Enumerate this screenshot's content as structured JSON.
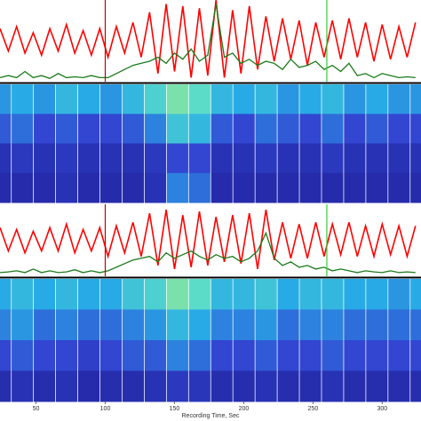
{
  "chart_data": [
    {
      "type": "line",
      "xlim": [
        24,
        328
      ],
      "ylim": [
        -1,
        1
      ],
      "x": [
        24,
        30,
        36,
        42,
        48,
        54,
        60,
        66,
        72,
        78,
        84,
        90,
        96,
        102,
        108,
        114,
        120,
        126,
        132,
        138,
        144,
        150,
        156,
        162,
        168,
        174,
        180,
        186,
        192,
        198,
        204,
        210,
        216,
        222,
        228,
        234,
        240,
        246,
        252,
        258,
        264,
        270,
        276,
        282,
        288,
        294,
        300,
        306,
        312,
        318,
        324
      ],
      "markers": [
        {
          "x": 100,
          "color": "#c00000"
        },
        {
          "x": 260,
          "color": "#33cc33"
        }
      ],
      "series": [
        {
          "color": "#ff0000",
          "values": [
            0.3,
            -0.25,
            0.35,
            -0.3,
            0.2,
            -0.35,
            0.3,
            -0.25,
            0.4,
            -0.3,
            0.25,
            -0.35,
            0.3,
            -0.4,
            0.35,
            -0.3,
            0.45,
            -0.4,
            0.7,
            -0.8,
            0.9,
            -0.75,
            0.85,
            -0.9,
            0.8,
            -0.85,
            1.0,
            -0.9,
            0.75,
            -0.8,
            0.85,
            -0.7,
            0.6,
            -0.5,
            0.55,
            -0.45,
            0.5,
            -0.6,
            0.45,
            -0.4,
            0.5,
            -0.45,
            0.55,
            -0.4,
            0.45,
            -0.5,
            0.4,
            -0.45,
            0.35,
            -0.4,
            0.45
          ]
        },
        {
          "color": "#1a7a1a",
          "values": [
            -0.9,
            -0.85,
            -0.9,
            -0.75,
            -0.9,
            -0.85,
            -0.92,
            -0.8,
            -0.9,
            -0.88,
            -0.9,
            -0.85,
            -0.9,
            -0.9,
            -0.8,
            -0.7,
            -0.6,
            -0.55,
            -0.5,
            -0.4,
            -0.55,
            -0.3,
            -0.45,
            -0.2,
            -0.5,
            -0.35,
            0.9,
            -0.4,
            -0.3,
            -0.55,
            -0.45,
            -0.6,
            -0.5,
            -0.55,
            -0.7,
            -0.45,
            -0.65,
            -0.6,
            -0.5,
            -0.7,
            -0.6,
            -0.75,
            -0.55,
            -0.85,
            -0.8,
            -0.9,
            -0.8,
            -0.85,
            -0.9,
            -0.88,
            -0.9
          ]
        }
      ]
    },
    {
      "type": "heatmap",
      "xlim": [
        24,
        328
      ],
      "x": [
        24,
        40,
        56,
        72,
        88,
        104,
        120,
        136,
        152,
        168,
        184,
        200,
        216,
        232,
        248,
        264,
        280,
        296,
        312,
        328
      ],
      "values": [
        [
          0.5,
          0.55,
          0.5,
          0.6,
          0.55,
          0.5,
          0.6,
          0.7,
          0.8,
          0.75,
          0.6,
          0.55,
          0.6,
          0.5,
          0.55,
          0.6,
          0.5,
          0.55,
          0.5,
          0.5
        ],
        [
          0.35,
          0.4,
          0.3,
          0.35,
          0.3,
          0.3,
          0.35,
          0.45,
          0.65,
          0.6,
          0.35,
          0.3,
          0.4,
          0.35,
          0.3,
          0.4,
          0.3,
          0.35,
          0.3,
          0.3
        ],
        [
          0.15,
          0.2,
          0.15,
          0.2,
          0.15,
          0.15,
          0.15,
          0.2,
          0.3,
          0.3,
          0.15,
          0.15,
          0.2,
          0.15,
          0.15,
          0.2,
          0.15,
          0.15,
          0.15,
          0.15
        ],
        [
          0.1,
          0.1,
          0.1,
          0.15,
          0.1,
          0.1,
          0.1,
          0.15,
          0.45,
          0.4,
          0.1,
          0.1,
          0.1,
          0.1,
          0.1,
          0.1,
          0.1,
          0.1,
          0.1,
          0.1
        ]
      ]
    },
    {
      "type": "line",
      "xlim": [
        24,
        328
      ],
      "ylim": [
        -1,
        1
      ],
      "x": [
        24,
        30,
        36,
        42,
        48,
        54,
        60,
        66,
        72,
        78,
        84,
        90,
        96,
        102,
        108,
        114,
        120,
        126,
        132,
        138,
        144,
        150,
        156,
        162,
        168,
        174,
        180,
        186,
        192,
        198,
        204,
        210,
        216,
        222,
        228,
        234,
        240,
        246,
        252,
        258,
        264,
        270,
        276,
        282,
        288,
        294,
        300,
        306,
        312,
        318,
        324
      ],
      "markers": [
        {
          "x": 100,
          "color": "#c00000"
        },
        {
          "x": 260,
          "color": "#33cc33"
        }
      ],
      "series": [
        {
          "color": "#ff0000",
          "values": [
            0.35,
            -0.3,
            0.3,
            -0.35,
            0.25,
            -0.3,
            0.35,
            -0.3,
            0.45,
            -0.35,
            0.3,
            -0.3,
            0.35,
            -0.45,
            0.4,
            -0.35,
            0.5,
            -0.45,
            0.75,
            -0.7,
            0.85,
            -0.8,
            0.7,
            -0.75,
            0.8,
            -0.7,
            0.65,
            -0.6,
            0.7,
            -0.65,
            0.75,
            -0.8,
            0.85,
            -0.55,
            0.5,
            -0.5,
            0.45,
            -0.5,
            0.5,
            -0.45,
            0.45,
            -0.4,
            0.5,
            -0.45,
            0.4,
            -0.45,
            0.45,
            -0.4,
            0.4,
            -0.45,
            0.4
          ]
        },
        {
          "color": "#1a7a1a",
          "values": [
            -0.9,
            -0.88,
            -0.85,
            -0.9,
            -0.8,
            -0.9,
            -0.85,
            -0.9,
            -0.88,
            -0.82,
            -0.9,
            -0.85,
            -0.9,
            -0.85,
            -0.75,
            -0.65,
            -0.55,
            -0.5,
            -0.45,
            -0.6,
            -0.35,
            -0.5,
            -0.4,
            -0.3,
            -0.45,
            -0.55,
            -0.4,
            -0.5,
            -0.45,
            -0.6,
            -0.5,
            -0.3,
            0.2,
            -0.5,
            -0.7,
            -0.6,
            -0.75,
            -0.7,
            -0.8,
            -0.75,
            -0.85,
            -0.8,
            -0.85,
            -0.9,
            -0.85,
            -0.88,
            -0.9,
            -0.85,
            -0.9,
            -0.88,
            -0.9
          ]
        }
      ]
    },
    {
      "type": "heatmap",
      "xlim": [
        24,
        328
      ],
      "x": [
        24,
        40,
        56,
        72,
        88,
        104,
        120,
        136,
        152,
        168,
        184,
        200,
        216,
        232,
        248,
        264,
        280,
        296,
        312,
        328
      ],
      "xticks": [
        50,
        100,
        150,
        200,
        250,
        300
      ],
      "xlabel": "Recording Time, Sec",
      "values": [
        [
          0.55,
          0.6,
          0.55,
          0.6,
          0.55,
          0.55,
          0.65,
          0.7,
          0.8,
          0.75,
          0.6,
          0.6,
          0.65,
          0.55,
          0.6,
          0.6,
          0.55,
          0.55,
          0.5,
          0.55
        ],
        [
          0.45,
          0.5,
          0.4,
          0.45,
          0.4,
          0.4,
          0.45,
          0.5,
          0.6,
          0.55,
          0.45,
          0.45,
          0.5,
          0.4,
          0.45,
          0.45,
          0.4,
          0.4,
          0.4,
          0.4
        ],
        [
          0.3,
          0.35,
          0.3,
          0.3,
          0.25,
          0.3,
          0.35,
          0.35,
          0.45,
          0.4,
          0.3,
          0.3,
          0.35,
          0.3,
          0.3,
          0.35,
          0.3,
          0.3,
          0.3,
          0.3
        ],
        [
          0.12,
          0.15,
          0.12,
          0.15,
          0.1,
          0.12,
          0.12,
          0.15,
          0.2,
          0.18,
          0.12,
          0.12,
          0.15,
          0.12,
          0.12,
          0.15,
          0.12,
          0.12,
          0.12,
          0.12
        ]
      ]
    }
  ]
}
